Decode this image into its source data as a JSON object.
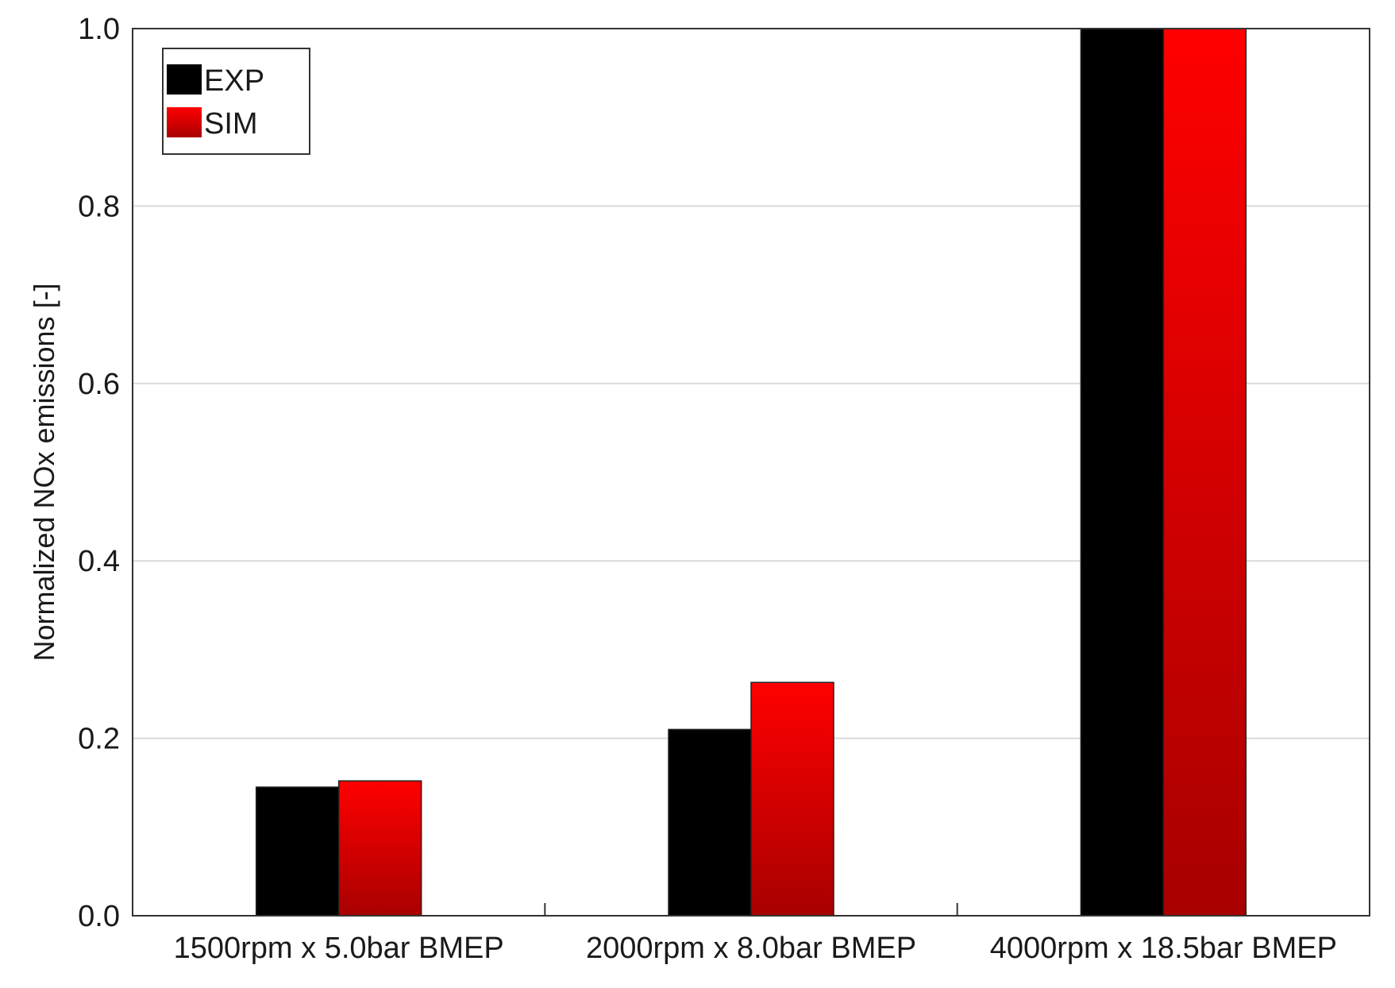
{
  "chart_data": {
    "type": "bar",
    "categories": [
      "1500rpm x 5.0bar BMEP",
      "2000rpm x 8.0bar BMEP",
      "4000rpm x 18.5bar BMEP"
    ],
    "series": [
      {
        "name": "EXP",
        "values": [
          0.145,
          0.21,
          1.0
        ],
        "color": "#000000"
      },
      {
        "name": "SIM",
        "values": [
          0.152,
          0.263,
          1.0
        ],
        "color": "#ff0000",
        "color_dark": "#a80000"
      }
    ],
    "ylabel": "Normalized NOx emissions [-]",
    "xlabel": "",
    "ylim": [
      0,
      1.0
    ],
    "yticks": [
      0.0,
      0.2,
      0.4,
      0.6,
      0.8,
      1.0
    ],
    "ytick_labels": [
      "0.0",
      "0.2",
      "0.4",
      "0.6",
      "0.8",
      "1.0"
    ],
    "grid": true,
    "legend_position": "top-left"
  }
}
